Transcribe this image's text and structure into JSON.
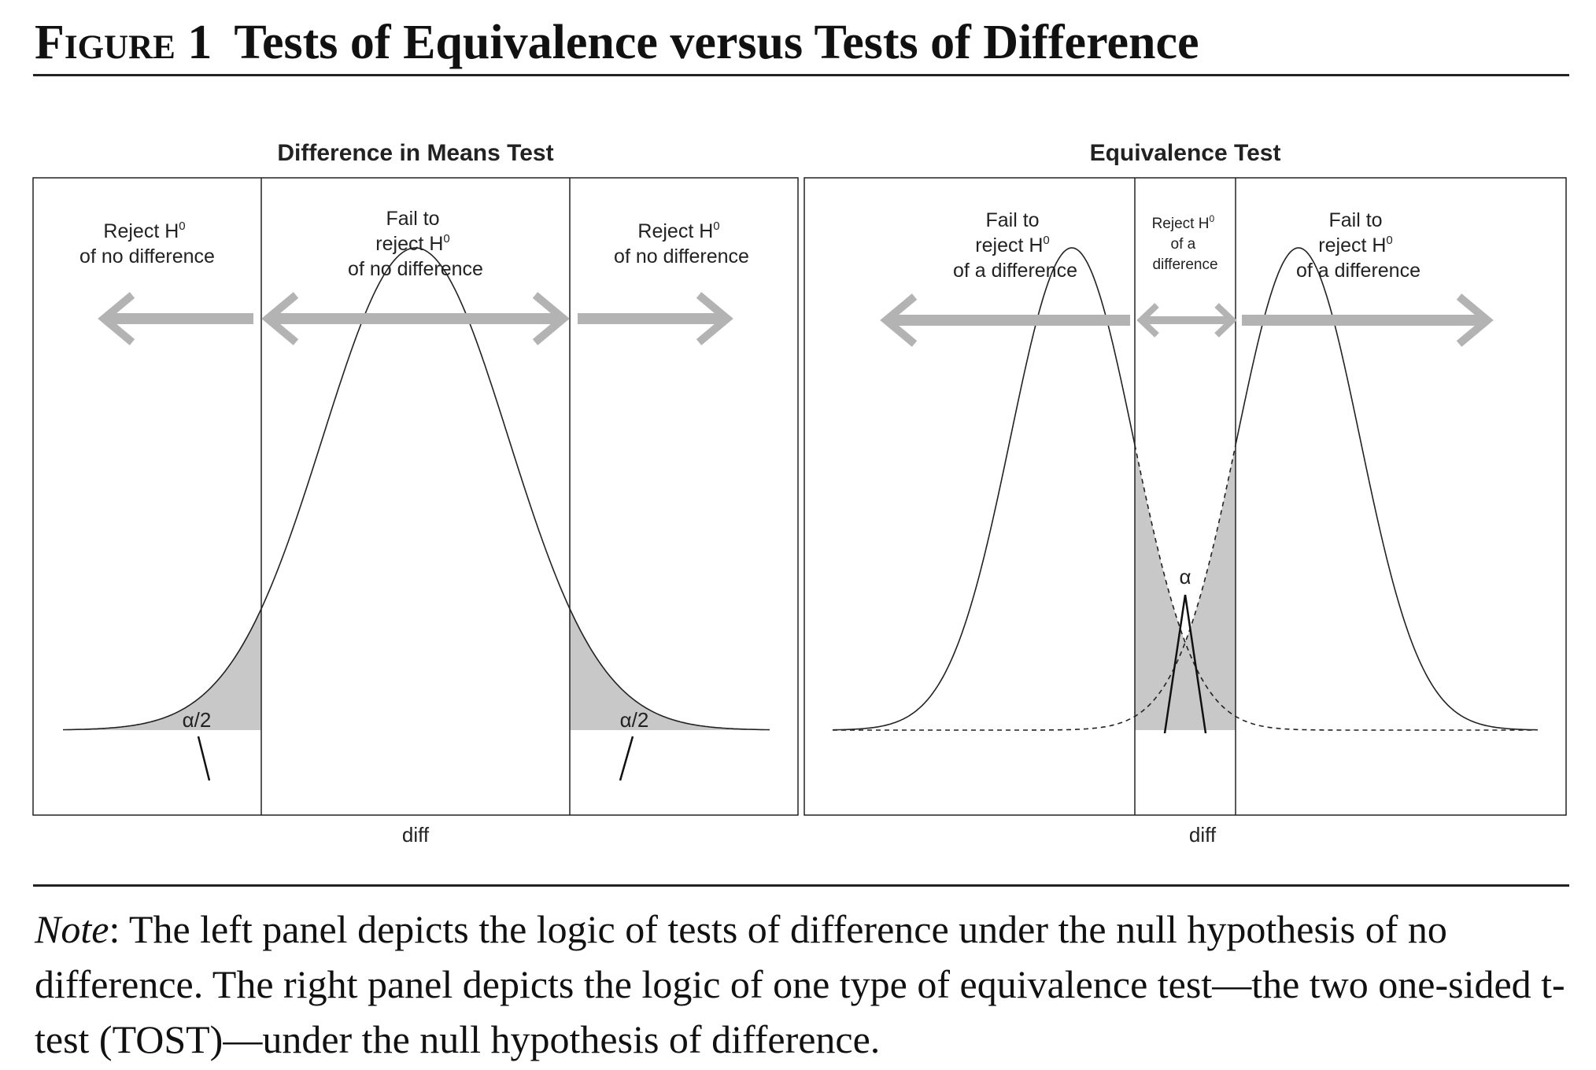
{
  "figure": {
    "number": "Figure 1",
    "title": "Tests of Equivalence versus Tests of Difference"
  },
  "left_panel": {
    "title": "Difference in Means Test",
    "region_left": [
      "Reject H",
      "of no difference"
    ],
    "region_center": [
      "Fail to",
      "reject H",
      "of no difference"
    ],
    "region_right": [
      "Reject H",
      "of no difference"
    ],
    "superscript": "0",
    "tail_label_left": "α/2",
    "tail_label_right": "α/2",
    "x_label": "diff"
  },
  "right_panel": {
    "title": "Equivalence Test",
    "region_left": [
      "Fail to",
      "reject H",
      "of a difference"
    ],
    "region_center": [
      "Reject H",
      "of a",
      "difference"
    ],
    "region_right": [
      "Fail to",
      "reject H",
      "of a difference"
    ],
    "superscript": "0",
    "alpha_label": "α",
    "x_label": "diff"
  },
  "colors": {
    "arrow": "#b3b3b3",
    "shade": "#c8c8c8",
    "line": "#222222"
  },
  "note": {
    "label": "Note",
    "text": ": The left panel depicts the logic of tests of difference under the null hypothesis of no difference. The right panel depicts the logic of one type of equivalence test—the two one-sided t-test (TOST)—under the null hypothesis of difference."
  }
}
